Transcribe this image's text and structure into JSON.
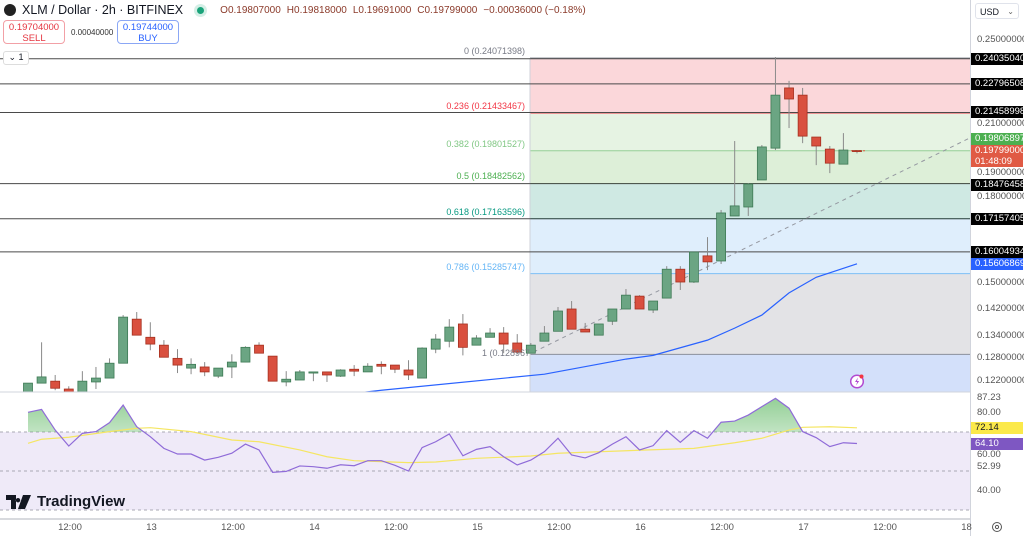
{
  "header": {
    "symbol": "XLM / Dollar · 2h · BITFINEX",
    "ohlc": {
      "o_key": "O",
      "o": "0.19807000",
      "h_key": "H",
      "h": "0.19818000",
      "l_key": "L",
      "l": "0.19691000",
      "c_key": "C",
      "c": "0.19799000",
      "change": "−0.00036000 (−0.18%)"
    }
  },
  "trade": {
    "sell_price": "0.19704000",
    "sell_label": "SELL",
    "spread": "0.00040000",
    "buy_price": "0.19744000",
    "buy_label": "BUY"
  },
  "indicator_toggle": "⌄ 1",
  "price_axis": {
    "currency": "USD",
    "ticks": [
      {
        "v": 0.25,
        "t": "0.25000000"
      },
      {
        "v": 0.21,
        "t": "0.21000000"
      },
      {
        "v": 0.19,
        "t": "0.19000000"
      },
      {
        "v": 0.18,
        "t": "0.18000000"
      },
      {
        "v": 0.15,
        "t": "0.15000000"
      },
      {
        "v": 0.142,
        "t": "0.14200000"
      },
      {
        "v": 0.134,
        "t": "0.13400000"
      },
      {
        "v": 0.128,
        "t": "0.12800000"
      },
      {
        "v": 0.122,
        "t": "0.12200000"
      }
    ],
    "markers": [
      {
        "v": 0.2403504,
        "t": "0.24035040",
        "color": "#000000"
      },
      {
        "v": 0.22796508,
        "t": "0.22796508",
        "color": "#000000"
      },
      {
        "v": 0.21458998,
        "t": "0.21458998",
        "color": "#000000"
      },
      {
        "v": 0.19806897,
        "t": "0.19806897",
        "color": "#4caf50"
      },
      {
        "v": 0.18476458,
        "t": "0.18476458",
        "color": "#000000"
      },
      {
        "v": 0.17157405,
        "t": "0.17157405",
        "color": "#000000"
      },
      {
        "v": 0.16004934,
        "t": "0.16004934",
        "color": "#000000"
      },
      {
        "v": 0.15606869,
        "t": "0.15606869",
        "color": "#2962ff"
      }
    ],
    "last_price": {
      "v": 0.19799,
      "t": "0.19799000",
      "countdown": "01:48:09",
      "color": "#e05a44"
    }
  },
  "rsi_axis": {
    "ticks": [
      {
        "v": 87.23,
        "t": "87.23"
      },
      {
        "v": 80,
        "t": "80.00"
      },
      {
        "v": 60,
        "t": "60.00"
      },
      {
        "v": 52.99,
        "t": "52.99"
      },
      {
        "v": 40,
        "t": "40.00"
      }
    ],
    "markers": [
      {
        "v": 72.14,
        "t": "72.14",
        "color": "#fbe94a",
        "text": "#131722"
      },
      {
        "v": 64.1,
        "t": "64.10",
        "color": "#7e57c2",
        "text": "#ffffff"
      }
    ]
  },
  "fibonacci": {
    "levels": [
      {
        "ratio": "0",
        "price": 0.24071398,
        "label": "0 (0.24071398)",
        "color": "#787b86"
      },
      {
        "ratio": "0.236",
        "price": 0.21433467,
        "label": "0.236 (0.21433467)",
        "color": "#f23645"
      },
      {
        "ratio": "0.382",
        "price": 0.19801527,
        "label": "0.382 (0.19801527)",
        "color": "#81c784"
      },
      {
        "ratio": "0.5",
        "price": 0.18482562,
        "label": "0.5 (0.18482562)",
        "color": "#4caf50"
      },
      {
        "ratio": "0.618",
        "price": 0.17163596,
        "label": "0.618 (0.17163596)",
        "color": "#089981"
      },
      {
        "ratio": "0.786",
        "price": 0.15285747,
        "label": "0.786 (0.15285747)",
        "color": "#64b5f6"
      },
      {
        "ratio": "1",
        "price": 0.128967,
        "label": "1 (0.128967",
        "color": "#787b86"
      }
    ],
    "zone_colors": [
      "#fbd7da",
      "#e6f3e3",
      "#ddefd8",
      "#cfe9e3",
      "#dfeefc",
      "#e3e3e6",
      "#d3e0fa"
    ]
  },
  "horizontal_lines": [
    0.2403504,
    0.22796508,
    0.21458998,
    0.18476458,
    0.17157405,
    0.16004934
  ],
  "time_axis": [
    "12:00",
    "13",
    "12:00",
    "14",
    "12:00",
    "15",
    "12:00",
    "16",
    "12:00",
    "17",
    "12:00",
    "18"
  ],
  "branding": {
    "logo": "TradingView"
  },
  "icons": {
    "symbol": "stellar-logo-icon",
    "live": "market-open-dot-icon",
    "settings": "gear-icon",
    "alert": "lightning-icon"
  },
  "chart_data": {
    "type": "candlestick",
    "price_scale": "log",
    "ylim": [
      0.119,
      0.25
    ],
    "colors": {
      "up": "#6ba583",
      "down": "#d9503f",
      "ma": "#2962ff",
      "rsi": "#8f6bd8",
      "rsi_ma": "#f5e663"
    },
    "candles_ohlc": [
      [
        0.1191,
        0.1214,
        0.1191,
        0.1214
      ],
      [
        0.1214,
        0.1323,
        0.1214,
        0.123
      ],
      [
        0.1219,
        0.1235,
        0.1196,
        0.1201
      ],
      [
        0.1199,
        0.1206,
        0.1191,
        0.1191
      ],
      [
        0.1191,
        0.1245,
        0.1191,
        0.1219
      ],
      [
        0.1217,
        0.1256,
        0.1199,
        0.1227
      ],
      [
        0.1227,
        0.1279,
        0.1227,
        0.1266
      ],
      [
        0.1266,
        0.1401,
        0.1266,
        0.1395
      ],
      [
        0.1389,
        0.141,
        0.1343,
        0.1343
      ],
      [
        0.1337,
        0.138,
        0.1301,
        0.1318
      ],
      [
        0.1315,
        0.1329,
        0.1282,
        0.1282
      ],
      [
        0.1279,
        0.1304,
        0.124,
        0.1261
      ],
      [
        0.1253,
        0.1279,
        0.1237,
        0.1263
      ],
      [
        0.1256,
        0.1269,
        0.1232,
        0.1243
      ],
      [
        0.1232,
        0.1253,
        0.1227,
        0.1253
      ],
      [
        0.1256,
        0.129,
        0.1227,
        0.1269
      ],
      [
        0.1269,
        0.1312,
        0.1269,
        0.1309
      ],
      [
        0.1315,
        0.1323,
        0.1293,
        0.1293
      ],
      [
        0.1285,
        0.1285,
        0.1219,
        0.1219
      ],
      [
        0.1217,
        0.1245,
        0.1206,
        0.1224
      ],
      [
        0.1222,
        0.1248,
        0.1222,
        0.1243
      ],
      [
        0.124,
        0.1243,
        0.1219,
        0.1243
      ],
      [
        0.1243,
        0.1243,
        0.1217,
        0.1235
      ],
      [
        0.1232,
        0.125,
        0.123,
        0.1248
      ],
      [
        0.125,
        0.1261,
        0.1232,
        0.1245
      ],
      [
        0.1243,
        0.1266,
        0.1243,
        0.1258
      ],
      [
        0.1263,
        0.1271,
        0.1237,
        0.1258
      ],
      [
        0.1261,
        0.1261,
        0.124,
        0.125
      ],
      [
        0.1248,
        0.1274,
        0.1222,
        0.1235
      ],
      [
        0.1227,
        0.1309,
        0.1227,
        0.1307
      ],
      [
        0.1304,
        0.1346,
        0.1293,
        0.1332
      ],
      [
        0.1326,
        0.1389,
        0.1309,
        0.1366
      ],
      [
        0.1375,
        0.1404,
        0.1287,
        0.1309
      ],
      [
        0.1315,
        0.1343,
        0.1315,
        0.1335
      ],
      [
        0.1337,
        0.1363,
        0.1337,
        0.1349
      ],
      [
        0.1349,
        0.1366,
        0.1293,
        0.1318
      ],
      [
        0.1321,
        0.1346,
        0.129,
        0.1296
      ],
      [
        0.1293,
        0.1321,
        0.1293,
        0.1315
      ],
      [
        0.1326,
        0.1369,
        0.1326,
        0.1349
      ],
      [
        0.1354,
        0.1425,
        0.1354,
        0.1413
      ],
      [
        0.1419,
        0.1443,
        0.136,
        0.136
      ],
      [
        0.136,
        0.1378,
        0.1352,
        0.1352
      ],
      [
        0.1343,
        0.1375,
        0.1343,
        0.1375
      ],
      [
        0.1383,
        0.1419,
        0.1372,
        0.1419
      ],
      [
        0.1419,
        0.148,
        0.1419,
        0.1461
      ],
      [
        0.1458,
        0.1461,
        0.1419,
        0.1419
      ],
      [
        0.1416,
        0.1443,
        0.1407,
        0.1443
      ],
      [
        0.1452,
        0.1553,
        0.1452,
        0.1543
      ],
      [
        0.1543,
        0.1553,
        0.1477,
        0.1502
      ],
      [
        0.1502,
        0.16,
        0.1499,
        0.16
      ],
      [
        0.1587,
        0.1651,
        0.154,
        0.1567
      ],
      [
        0.157,
        0.1748,
        0.156,
        0.1737
      ],
      [
        0.1726,
        0.2021,
        0.1726,
        0.1763
      ],
      [
        0.1759,
        0.185,
        0.1726,
        0.1846
      ],
      [
        0.1862,
        0.2004,
        0.1862,
        0.1996
      ],
      [
        0.1991,
        0.2412,
        0.1983,
        0.2226
      ],
      [
        0.226,
        0.2294,
        0.2077,
        0.2208
      ],
      [
        0.2226,
        0.226,
        0.2012,
        0.2042
      ],
      [
        0.2038,
        0.2038,
        0.1921,
        0.2
      ],
      [
        0.1987,
        0.2,
        0.1889,
        0.1929
      ],
      [
        0.1925,
        0.2055,
        0.1925,
        0.1983
      ],
      [
        0.19807,
        0.19818,
        0.19691,
        0.19799
      ]
    ],
    "moving_average": [
      [
        18,
        0.1165
      ],
      [
        26,
        0.1196
      ],
      [
        38,
        0.1237
      ],
      [
        44,
        0.1277
      ],
      [
        46,
        0.1287
      ],
      [
        50,
        0.1329
      ],
      [
        52,
        0.1363
      ],
      [
        54,
        0.1401
      ],
      [
        56,
        0.1468
      ],
      [
        58,
        0.1517
      ],
      [
        61,
        0.15607
      ]
    ],
    "trend_line": [
      [
        37.2,
        0.1296
      ],
      [
        69.3,
        0.2034
      ]
    ],
    "rsi": {
      "ylim": [
        25,
        90
      ],
      "bands": [
        70,
        50,
        30
      ],
      "values": [
        80.1,
        81.6,
        71.0,
        62.8,
        69.3,
        70.2,
        74.8,
        83.8,
        72.7,
        67.6,
        61.6,
        58.7,
        58.7,
        55.6,
        57.0,
        59.1,
        63.8,
        60.8,
        49.3,
        49.8,
        52.6,
        52.2,
        51.4,
        53.2,
        52.7,
        55.3,
        55.3,
        52.9,
        50.0,
        62.0,
        65.0,
        69.0,
        57.8,
        61.1,
        62.5,
        57.3,
        53.1,
        55.6,
        59.9,
        66.8,
        58.2,
        56.7,
        59.4,
        63.8,
        67.6,
        60.8,
        63.0,
        70.7,
        64.7,
        70.7,
        66.8,
        75.0,
        75.6,
        78.7,
        83.0,
        87.23,
        82.2,
        70.2,
        67.1,
        62.5,
        64.5,
        64.1
      ],
      "ma": [
        [
          0,
          64.2
        ],
        [
          1,
          66.3
        ],
        [
          3,
          67.3
        ],
        [
          6,
          70.2
        ],
        [
          8,
          71.9
        ],
        [
          9,
          72.2
        ],
        [
          12,
          70.2
        ],
        [
          15,
          65.9
        ],
        [
          17,
          65.0
        ],
        [
          20,
          60.8
        ],
        [
          22,
          57.3
        ],
        [
          24,
          55.3
        ],
        [
          26,
          54.8
        ],
        [
          28,
          54.3
        ],
        [
          30,
          54.6
        ],
        [
          33,
          56.5
        ],
        [
          37,
          57.7
        ],
        [
          39,
          59.1
        ],
        [
          44,
          60.4
        ],
        [
          49,
          61.6
        ],
        [
          52,
          64.5
        ],
        [
          54,
          66.8
        ],
        [
          56,
          71.0
        ],
        [
          57,
          72.4
        ],
        [
          59,
          72.7
        ],
        [
          61,
          72.14
        ]
      ]
    }
  }
}
